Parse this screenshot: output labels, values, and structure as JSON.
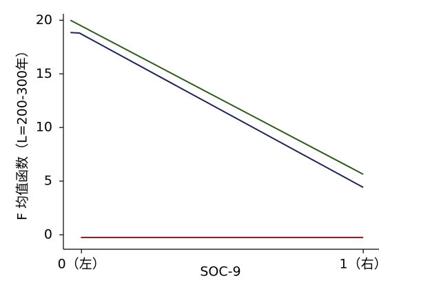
{
  "chart_data": {
    "type": "line",
    "xlabel": "SOC-9",
    "ylabel": "F 均值函数（L=200-300年）",
    "xlim": [
      -0.064,
      1.056
    ],
    "ylim": [
      -1.35,
      20.6
    ],
    "xticks": [
      {
        "value": 0,
        "label": "0（左）"
      },
      {
        "value": 1,
        "label": "1（右）"
      }
    ],
    "yticks": [
      0,
      5,
      10,
      15,
      20
    ],
    "grid": false,
    "series": [
      {
        "color": "#2e5a1c",
        "x": [
          -0.039,
          1
        ],
        "values": [
          20,
          5.64
        ]
      },
      {
        "color": "#1c2452",
        "x": [
          -0.039,
          -0.007,
          1
        ],
        "values": [
          18.85,
          18.8,
          4.42
        ]
      },
      {
        "color": "#7a1c1c",
        "x": [
          -0.002,
          1
        ],
        "values": [
          -0.25,
          -0.25
        ]
      }
    ]
  }
}
